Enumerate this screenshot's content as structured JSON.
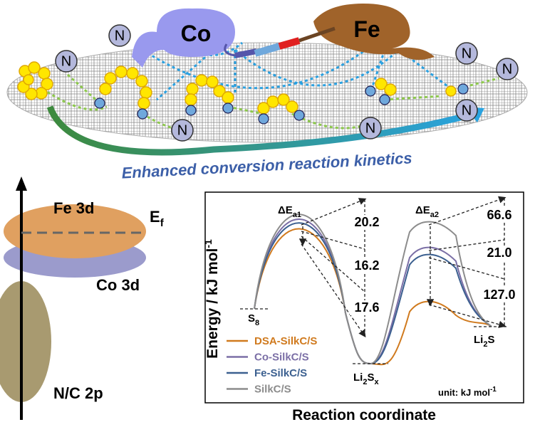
{
  "illustration": {
    "metals": [
      "Co",
      "Fe"
    ],
    "n_label": "N",
    "caption": "Enhanced conversion reaction kinetics"
  },
  "band_diagram": {
    "levels": [
      "Fe 3d",
      "Co 3d",
      "N/C 2p"
    ],
    "fermi": [
      "E",
      "f"
    ]
  },
  "energy_profile": {
    "y_label": [
      "Energy / kJ mol",
      "-1"
    ],
    "x_label": "Reaction coordinate",
    "states": [
      [
        "S",
        "8"
      ],
      [
        "Li",
        "2",
        "S",
        "x"
      ],
      [
        "Li",
        "2",
        "S"
      ]
    ],
    "barriers": [
      [
        "ΔE",
        "a1"
      ],
      [
        "ΔE",
        "a2"
      ]
    ],
    "differences": [
      "20.2",
      "16.2",
      "17.6",
      "66.6",
      "21.0",
      "127.0"
    ],
    "legend": [
      {
        "name": "DSA-SilkC/S",
        "color": "#d07a1e"
      },
      {
        "name": "Co-SilkC/S",
        "color": "#7b6fa6"
      },
      {
        "name": "Fe-SilkC/S",
        "color": "#3c6090"
      },
      {
        "name": "SilkC/S",
        "color": "#8c8c8c"
      }
    ],
    "unit": [
      "unit: kJ mol",
      "-1"
    ]
  }
}
